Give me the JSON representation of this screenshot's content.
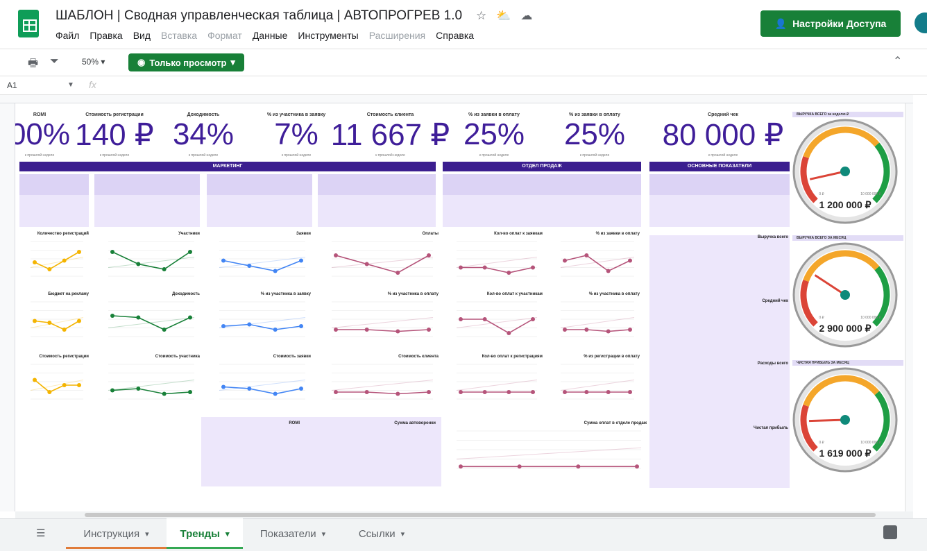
{
  "title_bar": {
    "title": "ШАБЛОН | Сводная управленческая таблица | АВТОПРОГРЕВ 1.0",
    "icons": [
      "star-icon",
      "cloud-sync-icon",
      "cloud-icon"
    ],
    "share_label": "Настройки Доступа"
  },
  "menu": [
    "Файл",
    "Правка",
    "Вид",
    "Вставка",
    "Формат",
    "Данные",
    "Инструменты",
    "Расширения",
    "Справка"
  ],
  "menu_disabled": [
    "Вставка",
    "Формат",
    "Расширения"
  ],
  "toolbar": {
    "zoom": "50%",
    "view_mode": "Только просмотр"
  },
  "formula_bar": {
    "cell": "A1",
    "fx": "fx"
  },
  "kpis": [
    {
      "label": "ROMI",
      "value": "00%",
      "sub": "к прошлой неделе"
    },
    {
      "label": "Стоимость регистрации",
      "value": "140 ₽",
      "sub": "к прошлой неделе"
    },
    {
      "label": "Доходимость",
      "value": "34%",
      "sub": "к прошлой неделе"
    },
    {
      "label": "% из участника в заявку",
      "value": "7%",
      "sub": "к прошлой неделе"
    },
    {
      "label": "Стоимость клиента",
      "value": "11 667 ₽",
      "sub": "к прошлой неделе"
    },
    {
      "label": "% из заявки в оплату",
      "value": "25%",
      "sub": "к прошлой неделе"
    },
    {
      "label": "% из заявки в оплату",
      "value": "25%",
      "sub": "к прошлой неделе"
    },
    {
      "label": "Средний чек",
      "value": "80 000 ₽",
      "sub": "к прошлой неделе"
    }
  ],
  "sections": [
    "МАРКЕТИНГ",
    "ОТДЕЛ ПРОДАЖ",
    "ОСНОВНЫЕ ПОКАЗАТЕЛИ"
  ],
  "chart_titles": [
    "Количество регистраций",
    "Участники",
    "Заявки",
    "Оплаты",
    "Бюджет на рекламу",
    "Доходимость",
    "% из участника в заявку",
    "% из участника в оплату",
    "Стоимость регистрации",
    "Стоимость участника",
    "Стоимость заявки",
    "Стоимость клиента",
    "ROMI",
    "Сумма автоворонки",
    "Кол-во оплат к заявкам",
    "% из заявки в оплату",
    "Кол-во оплат к участникам",
    "% из участника в оплату",
    "Кол-во оплат к регистрациям",
    "% из регистрации в оплату",
    "Сумма оплат в отделе продаж",
    "Выручка всего",
    "Средний чек",
    "Расходы всего",
    "Чистая прибыль"
  ],
  "gauges": [
    {
      "title": "ВЫРУЧКА ВСЕГО за неделю ₽",
      "value": "1 200 000 ₽",
      "fraction": 0.12
    },
    {
      "title": "ВЫРУЧКА ВСЕГО ЗА МЕСЯЦ",
      "value": "2 900 000 ₽",
      "fraction": 0.29
    },
    {
      "title": "ЧИСТАЯ ПРИБЫЛЬ ЗА МЕСЯЦ",
      "value": "1 619 000 ₽",
      "fraction": 0.16
    }
  ],
  "gauge_scale": {
    "min": "0 ₽",
    "max": "10 000 000 ₽"
  },
  "tabs": [
    {
      "label": "Инструкция",
      "active": false,
      "color": "#e07b39"
    },
    {
      "label": "Тренды",
      "active": true,
      "color": "#34a853"
    },
    {
      "label": "Показатели",
      "active": false,
      "color": ""
    },
    {
      "label": "Ссылки",
      "active": false,
      "color": ""
    }
  ],
  "colors": {
    "accent": "#3b1e8f",
    "kpi": "#3f1e99",
    "green": "#188038",
    "yellow": "#f4b400",
    "blue": "#4285f4",
    "pink": "#b5547a",
    "purple": "#5b3fa8"
  }
}
